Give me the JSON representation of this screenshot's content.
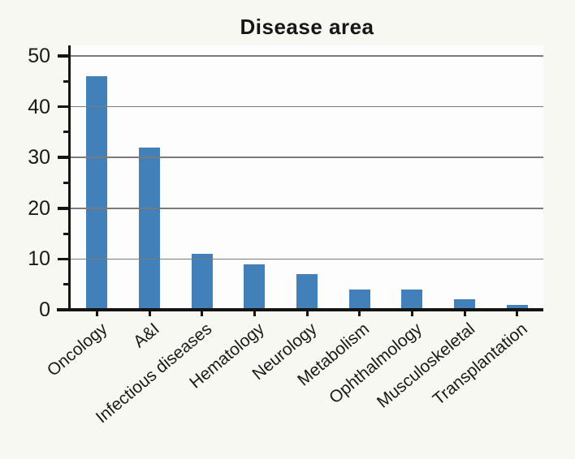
{
  "page": {
    "background_color": "#f8f8f2"
  },
  "chart_data": {
    "type": "bar",
    "title": "Disease area",
    "xlabel": "",
    "ylabel": "",
    "categories": [
      "Oncology",
      "A&I",
      "Infectious diseases",
      "Hematology",
      "Neurology",
      "Metabolism",
      "Ophthalmology",
      "Musculoskeletal",
      "Transplantation"
    ],
    "values": [
      46,
      32,
      11,
      9,
      7,
      4,
      4,
      2,
      1
    ],
    "ylim": [
      0,
      52
    ],
    "yticks": [
      0,
      10,
      20,
      30,
      40,
      50
    ],
    "minor_yticks": [
      5,
      15,
      25,
      35,
      45
    ],
    "grid": true,
    "gridlines_over_bars": true,
    "legend_position": "none",
    "x_label_rotation_deg": 40,
    "bar_color": "#4180b8",
    "gridline_color": "#7a7a7a",
    "axis_color": "#141414",
    "plot_background": "#fdfdfd"
  }
}
